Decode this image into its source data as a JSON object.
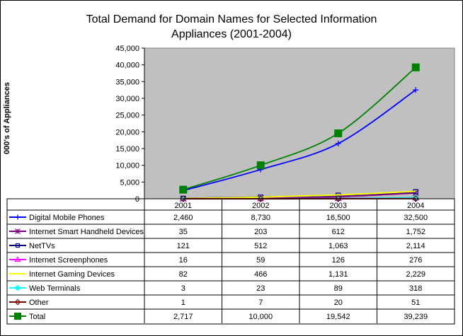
{
  "chart_data": {
    "type": "line",
    "title_line1": "Total Demand for Domain Names for Selected Information",
    "title_line2": "Appliances (2001-2004)",
    "ylabel": "000's of Appliances",
    "xlabel": "",
    "categories": [
      "2001",
      "2002",
      "2003",
      "2004"
    ],
    "ylim": [
      0,
      45000
    ],
    "yticks": [
      0,
      5000,
      10000,
      15000,
      20000,
      25000,
      30000,
      35000,
      40000,
      45000
    ],
    "ytick_labels": [
      "0",
      "5,000",
      "10,000",
      "15,000",
      "20,000",
      "25,000",
      "30,000",
      "35,000",
      "40,000",
      "45,000"
    ],
    "plot_background": "#c0c0c0",
    "legend": "data-table",
    "series": [
      {
        "name": "Digital Mobile Phones",
        "values": [
          2460,
          8730,
          16500,
          32500
        ],
        "labels": [
          "2,460",
          "8,730",
          "16,500",
          "32,500"
        ],
        "color": "#0000ff",
        "marker": "plus"
      },
      {
        "name": "Internet Smart Handheld Devices",
        "values": [
          35,
          203,
          612,
          1752
        ],
        "labels": [
          "35",
          "203",
          "612",
          "1,752"
        ],
        "color": "#800080",
        "marker": "star"
      },
      {
        "name": "NetTVs",
        "values": [
          121,
          512,
          1063,
          2114
        ],
        "labels": [
          "121",
          "512",
          "1,063",
          "2,114"
        ],
        "color": "#000080",
        "marker": "square-open"
      },
      {
        "name": "Internet Screenphones",
        "values": [
          16,
          59,
          126,
          276
        ],
        "labels": [
          "16",
          "59",
          "126",
          "276"
        ],
        "color": "#ff00ff",
        "marker": "triangle"
      },
      {
        "name": "Internet Gaming Devices",
        "values": [
          82,
          466,
          1131,
          2229
        ],
        "labels": [
          "82",
          "466",
          "1,131",
          "2,229"
        ],
        "color": "#ffff00",
        "marker": "none"
      },
      {
        "name": "Web Terminals",
        "values": [
          3,
          23,
          89,
          318
        ],
        "labels": [
          "3",
          "23",
          "89",
          "318"
        ],
        "color": "#00ffff",
        "marker": "diamond"
      },
      {
        "name": "Other",
        "values": [
          1,
          7,
          20,
          51
        ],
        "labels": [
          "1",
          "7",
          "20",
          "51"
        ],
        "color": "#800000",
        "marker": "diamond-open"
      },
      {
        "name": "Total",
        "values": [
          2717,
          10000,
          19542,
          39239
        ],
        "labels": [
          "2,717",
          "10,000",
          "19,542",
          "39,239"
        ],
        "color": "#008000",
        "marker": "square-filled"
      }
    ]
  }
}
